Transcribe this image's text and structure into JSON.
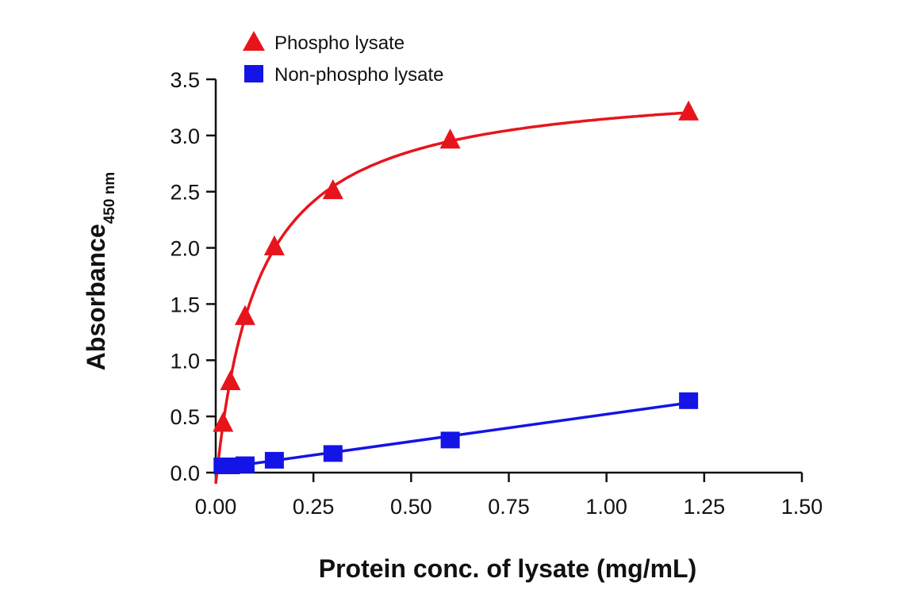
{
  "chart_data": {
    "type": "scatter",
    "xlabel": "Protein conc. of lysate (mg/mL)",
    "ylabel": "Absorbance",
    "ylabel_subscript": "450 nm",
    "xlim": [
      0,
      1.5
    ],
    "ylim": [
      0,
      3.5
    ],
    "x_ticks": [
      "0.00",
      "0.25",
      "0.50",
      "0.75",
      "1.00",
      "1.25",
      "1.50"
    ],
    "y_ticks": [
      "0.0",
      "0.5",
      "1.0",
      "1.5",
      "2.0",
      "2.5",
      "3.0",
      "3.5"
    ],
    "grid": false,
    "legend_position": "top-left",
    "series": [
      {
        "name": "Phospho lysate",
        "marker": "triangle",
        "color": "#e8141c",
        "fit": "saturation",
        "points": [
          {
            "x": 0.0188,
            "y": 0.44
          },
          {
            "x": 0.0375,
            "y": 0.81
          },
          {
            "x": 0.075,
            "y": 1.39
          },
          {
            "x": 0.15,
            "y": 2.01
          },
          {
            "x": 0.3,
            "y": 2.51
          },
          {
            "x": 0.6,
            "y": 2.96
          },
          {
            "x": 1.21,
            "y": 3.21
          }
        ]
      },
      {
        "name": "Non-phospho lysate",
        "marker": "square",
        "color": "#1414e6",
        "fit": "linear",
        "points": [
          {
            "x": 0.0188,
            "y": 0.06
          },
          {
            "x": 0.0375,
            "y": 0.06
          },
          {
            "x": 0.075,
            "y": 0.07
          },
          {
            "x": 0.15,
            "y": 0.11
          },
          {
            "x": 0.3,
            "y": 0.17
          },
          {
            "x": 0.6,
            "y": 0.29
          },
          {
            "x": 1.21,
            "y": 0.64
          }
        ]
      }
    ]
  }
}
